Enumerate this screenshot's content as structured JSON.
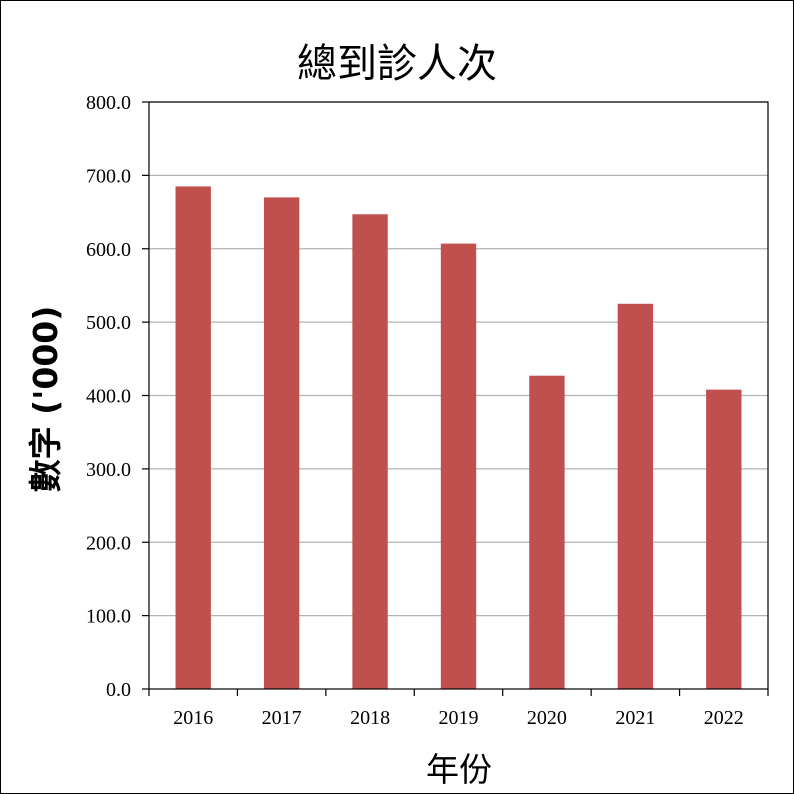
{
  "chart_data": {
    "type": "bar",
    "title": "總到診人次",
    "xlabel": "年份",
    "ylabel": "數字 ('000)",
    "categories": [
      "2016",
      "2017",
      "2018",
      "2019",
      "2020",
      "2021",
      "2022"
    ],
    "values": [
      685,
      670,
      647,
      607,
      427,
      525,
      408
    ],
    "ylim": [
      0,
      800
    ],
    "yticks": [
      "0.0",
      "100.0",
      "200.0",
      "300.0",
      "400.0",
      "500.0",
      "600.0",
      "700.0",
      "800.0"
    ],
    "grid": true,
    "legend": "none",
    "colors": {
      "bar": "#c0504d",
      "grid": "#b3b3b3",
      "axis": "#000000"
    }
  }
}
